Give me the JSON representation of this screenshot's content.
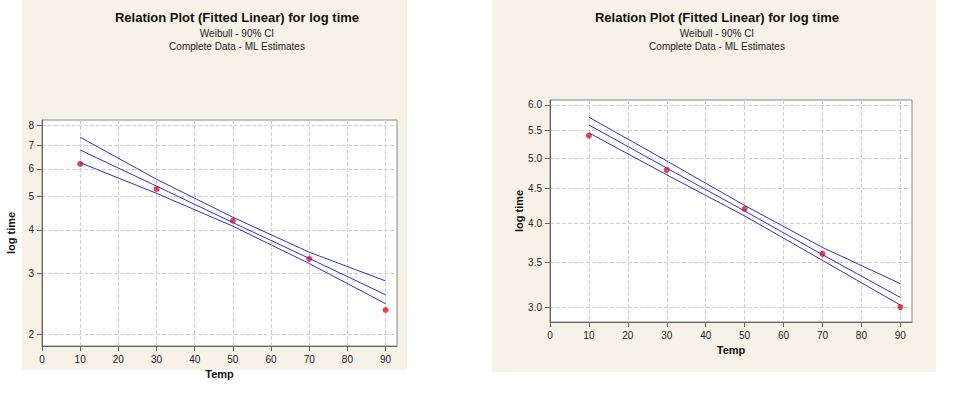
{
  "chart_data": [
    {
      "type": "line",
      "title": "Relation Plot (Fitted Linear) for log time",
      "subtitle": [
        "Weibull - 90% CI",
        "Complete Data - ML Estimates"
      ],
      "x_label": "Temp",
      "y_label": "log time",
      "log": "y",
      "grid": true,
      "xlim": [
        0,
        93
      ],
      "xticks": [
        0,
        10,
        20,
        30,
        40,
        50,
        60,
        70,
        80,
        90
      ],
      "ylim": [
        1.85,
        8.3
      ],
      "yticks": [
        2,
        3,
        4,
        5,
        6,
        7,
        8
      ],
      "x": [
        10,
        30,
        50,
        70,
        90
      ],
      "series": [
        {
          "type": "scatter",
          "color": "#e8141b",
          "marker": "circle",
          "values": [
            6.2,
            5.25,
            4.25,
            3.3,
            2.35
          ]
        },
        {
          "type": "line",
          "color": "#3030d0",
          "line_style": "solid",
          "values": [
            6.8,
            5.35,
            4.2,
            3.31,
            2.6
          ]
        },
        {
          "type": "line",
          "color": "#3030d0",
          "line_style": "solid",
          "values": [
            7.4,
            5.6,
            4.35,
            3.45,
            2.85
          ]
        },
        {
          "type": "line",
          "color": "#3030d0",
          "line_style": "solid",
          "values": [
            6.25,
            5.1,
            4.1,
            3.2,
            2.45
          ]
        }
      ]
    },
    {
      "type": "line",
      "title": "Relation Plot (Fitted Linear) for log time",
      "subtitle": [
        "Weibull - 90% CI",
        "Complete Data - ML Estimates"
      ],
      "x_label": "Temp",
      "y_label": "log time",
      "log": "y",
      "grid": true,
      "xlim": [
        0,
        93
      ],
      "xticks": [
        0,
        10,
        20,
        30,
        40,
        50,
        60,
        70,
        80,
        90
      ],
      "ylim": [
        2.85,
        6.1
      ],
      "yticks": [
        {
          "value": 3,
          "label": "3.0"
        },
        {
          "value": 3.5,
          "label": "3.5"
        },
        {
          "value": 4,
          "label": "4.0"
        },
        {
          "value": 4.5,
          "label": "4.5"
        },
        {
          "value": 5,
          "label": "5.0"
        },
        {
          "value": 5.5,
          "label": "5.5"
        },
        {
          "value": 6,
          "label": "6.0"
        }
      ],
      "x": [
        10,
        30,
        50,
        70,
        90
      ],
      "series": [
        {
          "type": "scatter",
          "color": "#e8141b",
          "marker": "circle",
          "values": [
            5.4,
            4.8,
            4.2,
            3.6,
            3.0
          ]
        },
        {
          "type": "line",
          "color": "#3030d0",
          "line_style": "solid",
          "values": [
            5.6,
            4.83,
            4.17,
            3.59,
            3.1
          ]
        },
        {
          "type": "line",
          "color": "#3030d0",
          "line_style": "solid",
          "values": [
            5.75,
            4.95,
            4.25,
            3.68,
            3.25
          ]
        },
        {
          "type": "line",
          "color": "#3030d0",
          "line_style": "solid",
          "values": [
            5.45,
            4.72,
            4.1,
            3.52,
            3.02
          ]
        }
      ]
    }
  ]
}
